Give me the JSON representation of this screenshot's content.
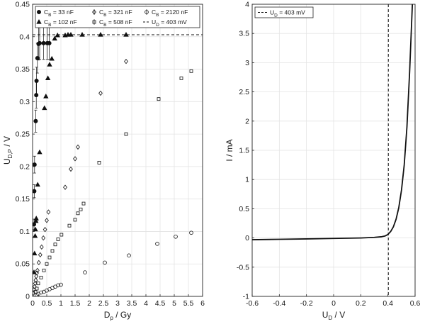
{
  "chart_data": [
    {
      "type": "scatter",
      "title": "",
      "xlabel": {
        "main": "D",
        "sub": "p",
        "rest": " / Gy"
      },
      "ylabel": {
        "main": "U",
        "sub": "D,P",
        "rest": " / V"
      },
      "xlim": [
        0,
        6
      ],
      "ylim": [
        0,
        0.45
      ],
      "xticks": [
        "0",
        "0.5",
        "1",
        "1.5",
        "2",
        "2.5",
        "3",
        "3.5",
        "4",
        "4.5",
        "5",
        "5.5",
        "6"
      ],
      "xtick_values": [
        0,
        0.5,
        1,
        1.5,
        2,
        2.5,
        3,
        3.5,
        4,
        4.5,
        5,
        5.5,
        6
      ],
      "yticks": [
        "0",
        "0.05",
        "0.1",
        "0.15",
        "0.2",
        "0.25",
        "0.3",
        "0.35",
        "0.4",
        "0.45"
      ],
      "ytick_values": [
        0,
        0.05,
        0.1,
        0.15,
        0.2,
        0.25,
        0.3,
        0.35,
        0.4,
        0.45
      ],
      "grid": true,
      "legend_position": "top",
      "reference_line": {
        "label": {
          "pre": "U",
          "sub": "D",
          "post": " = 403 mV"
        },
        "y": 0.403,
        "style": "dashed"
      },
      "series": [
        {
          "label": {
            "pre": "C",
            "sub": "B",
            "post": " = 33 nF"
          },
          "marker": "filled-circle",
          "points": [
            {
              "x": 0.05,
              "y": 0.111,
              "err": 0.008
            },
            {
              "x": 0.06,
              "y": 0.162,
              "err": 0.01
            },
            {
              "x": 0.07,
              "y": 0.203,
              "err": 0.013
            },
            {
              "x": 0.11,
              "y": 0.27,
              "err": 0.017
            },
            {
              "x": 0.13,
              "y": 0.31,
              "err": 0.02
            },
            {
              "x": 0.14,
              "y": 0.332,
              "err": 0.021
            },
            {
              "x": 0.17,
              "y": 0.367,
              "err": 0.023
            },
            {
              "x": 0.21,
              "y": 0.389,
              "err": 0.025
            },
            {
              "x": 0.25,
              "y": 0.39,
              "err": 0.025
            },
            {
              "x": 0.39,
              "y": 0.39,
              "err": 0.025
            },
            {
              "x": 0.52,
              "y": 0.39,
              "err": 0.025
            },
            {
              "x": 0.59,
              "y": 0.39,
              "err": 0.025
            }
          ]
        },
        {
          "label": {
            "pre": "C",
            "sub": "B",
            "post": " = 102 nF"
          },
          "marker": "filled-triangle",
          "points": [
            {
              "x": 0.05,
              "y": 0.037
            },
            {
              "x": 0.07,
              "y": 0.066
            },
            {
              "x": 0.09,
              "y": 0.093
            },
            {
              "x": 0.1,
              "y": 0.103
            },
            {
              "x": 0.12,
              "y": 0.116
            },
            {
              "x": 0.13,
              "y": 0.12
            },
            {
              "x": 0.18,
              "y": 0.172
            },
            {
              "x": 0.25,
              "y": 0.222
            },
            {
              "x": 0.42,
              "y": 0.29
            },
            {
              "x": 0.47,
              "y": 0.308
            },
            {
              "x": 0.54,
              "y": 0.336
            },
            {
              "x": 0.6,
              "y": 0.357
            },
            {
              "x": 0.68,
              "y": 0.366
            },
            {
              "x": 0.78,
              "y": 0.397
            },
            {
              "x": 0.88,
              "y": 0.402
            },
            {
              "x": 1.15,
              "y": 0.402
            },
            {
              "x": 1.25,
              "y": 0.403
            },
            {
              "x": 1.35,
              "y": 0.403
            },
            {
              "x": 1.75,
              "y": 0.403
            },
            {
              "x": 2.4,
              "y": 0.403
            },
            {
              "x": 3.3,
              "y": 0.403
            }
          ]
        },
        {
          "label": {
            "pre": "C",
            "sub": "B",
            "post": " = 321 nF"
          },
          "marker": "open-diamond",
          "points": [
            {
              "x": 0.03,
              "y": 0.005
            },
            {
              "x": 0.05,
              "y": 0.01
            },
            {
              "x": 0.07,
              "y": 0.015
            },
            {
              "x": 0.09,
              "y": 0.02
            },
            {
              "x": 0.11,
              "y": 0.025
            },
            {
              "x": 0.13,
              "y": 0.031
            },
            {
              "x": 0.15,
              "y": 0.036
            },
            {
              "x": 0.17,
              "y": 0.04
            },
            {
              "x": 0.22,
              "y": 0.052
            },
            {
              "x": 0.27,
              "y": 0.064
            },
            {
              "x": 0.32,
              "y": 0.076
            },
            {
              "x": 0.38,
              "y": 0.09
            },
            {
              "x": 0.44,
              "y": 0.103
            },
            {
              "x": 0.5,
              "y": 0.117
            },
            {
              "x": 0.56,
              "y": 0.13
            },
            {
              "x": 1.15,
              "y": 0.168
            },
            {
              "x": 1.35,
              "y": 0.196
            },
            {
              "x": 1.5,
              "y": 0.212
            },
            {
              "x": 1.6,
              "y": 0.23
            },
            {
              "x": 2.4,
              "y": 0.313
            },
            {
              "x": 3.3,
              "y": 0.362
            }
          ]
        },
        {
          "label": {
            "pre": "C",
            "sub": "B",
            "post": " = 508 nF"
          },
          "marker": "open-square",
          "points": [
            {
              "x": 0.1,
              "y": 0.007
            },
            {
              "x": 0.15,
              "y": 0.012
            },
            {
              "x": 0.2,
              "y": 0.02
            },
            {
              "x": 0.3,
              "y": 0.029
            },
            {
              "x": 0.4,
              "y": 0.04
            },
            {
              "x": 0.5,
              "y": 0.05
            },
            {
              "x": 0.6,
              "y": 0.06
            },
            {
              "x": 0.7,
              "y": 0.07
            },
            {
              "x": 0.8,
              "y": 0.08
            },
            {
              "x": 0.9,
              "y": 0.088
            },
            {
              "x": 1.02,
              "y": 0.095
            },
            {
              "x": 1.3,
              "y": 0.109
            },
            {
              "x": 1.5,
              "y": 0.118
            },
            {
              "x": 1.6,
              "y": 0.128
            },
            {
              "x": 1.7,
              "y": 0.134
            },
            {
              "x": 1.8,
              "y": 0.143
            },
            {
              "x": 2.35,
              "y": 0.206
            },
            {
              "x": 3.3,
              "y": 0.25
            },
            {
              "x": 4.45,
              "y": 0.304
            },
            {
              "x": 5.25,
              "y": 0.336
            },
            {
              "x": 5.6,
              "y": 0.347
            }
          ]
        },
        {
          "label": {
            "pre": "C",
            "sub": "B",
            "post": " = 2120 nF"
          },
          "marker": "open-circle",
          "points": [
            {
              "x": 0.15,
              "y": 0.002
            },
            {
              "x": 0.2,
              "y": 0.004
            },
            {
              "x": 0.3,
              "y": 0.006
            },
            {
              "x": 0.4,
              "y": 0.007
            },
            {
              "x": 0.5,
              "y": 0.009
            },
            {
              "x": 0.6,
              "y": 0.011
            },
            {
              "x": 0.7,
              "y": 0.013
            },
            {
              "x": 0.8,
              "y": 0.015
            },
            {
              "x": 0.9,
              "y": 0.017
            },
            {
              "x": 1.0,
              "y": 0.018
            },
            {
              "x": 1.85,
              "y": 0.037
            },
            {
              "x": 2.55,
              "y": 0.052
            },
            {
              "x": 3.4,
              "y": 0.063
            },
            {
              "x": 4.4,
              "y": 0.081
            },
            {
              "x": 5.05,
              "y": 0.092
            },
            {
              "x": 5.6,
              "y": 0.098
            }
          ]
        }
      ]
    },
    {
      "type": "line",
      "title": "",
      "xlabel": {
        "main": "U",
        "sub": "D",
        "rest": " / V"
      },
      "ylabel": {
        "main": "I / mA",
        "sub": "",
        "rest": ""
      },
      "xlim": [
        -0.6,
        0.6
      ],
      "ylim": [
        -1,
        4
      ],
      "xticks": [
        "-0.6",
        "-0.4",
        "-0.2",
        "0",
        "0.2",
        "0.4",
        "0.6"
      ],
      "xtick_values": [
        -0.6,
        -0.4,
        -0.2,
        0,
        0.2,
        0.4,
        0.6
      ],
      "yticks": [
        "-1",
        "-0.5",
        "0",
        "0.5",
        "1",
        "1.5",
        "2",
        "2.5",
        "3",
        "3.5",
        "4"
      ],
      "ytick_values": [
        -1,
        -0.5,
        0,
        0.5,
        1,
        1.5,
        2,
        2.5,
        3,
        3.5,
        4
      ],
      "grid": true,
      "legend_position": "top-left",
      "reference_line": {
        "label": {
          "pre": "U",
          "sub": "D",
          "post": " = 403 mV"
        },
        "x": 0.403,
        "style": "dashed"
      },
      "series": [
        {
          "x": [
            -0.6,
            -0.4,
            -0.2,
            0.0,
            0.2,
            0.3,
            0.35,
            0.38,
            0.4,
            0.42,
            0.44,
            0.46,
            0.48,
            0.5,
            0.52,
            0.54,
            0.56,
            0.58
          ],
          "y": [
            -0.03,
            -0.023,
            -0.016,
            -0.008,
            0.0,
            0.01,
            0.02,
            0.035,
            0.06,
            0.11,
            0.19,
            0.32,
            0.52,
            0.82,
            1.25,
            1.9,
            2.85,
            4.0
          ]
        }
      ]
    }
  ]
}
